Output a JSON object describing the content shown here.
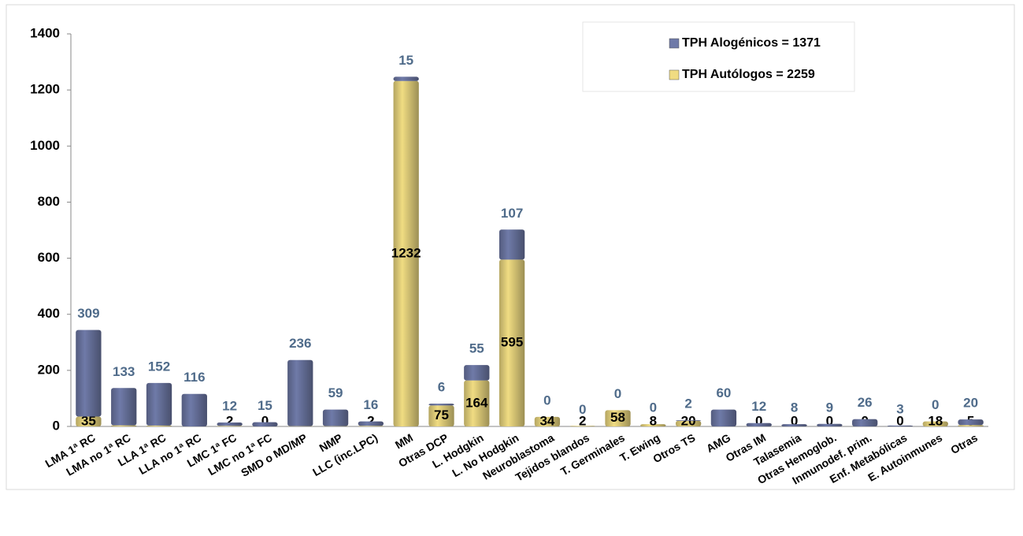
{
  "chart_data": {
    "type": "stacked_bar",
    "categories": [
      "LMA 1ª RC",
      "LMA no 1ª RC",
      "LLA 1ª RC",
      "LLA no 1ª RC",
      "LMC 1ª FC",
      "LMC no 1ª FC",
      "SMD o MD/MP",
      "NMP",
      "LLC (inc.LPC)",
      "MM",
      "Otras DCP",
      "L. Hodgkin",
      "L. No Hodgkin",
      "Neuroblastoma",
      "Tejidos blandos",
      "T. Germinales",
      "T. Ewing",
      "Otros TS",
      "AMG",
      "Otras IM",
      "Talasemia",
      "Otras Hemoglob.",
      "Inmunodef. prim.",
      "Enf. Metabólicas",
      "E. Autoinmunes",
      "Otras"
    ],
    "series": [
      {
        "name": "TPH Autólogos = 2259",
        "color": "#f0dc82",
        "values": [
          35,
          4,
          3,
          0,
          2,
          0,
          1,
          1,
          2,
          1232,
          75,
          164,
          595,
          34,
          2,
          58,
          8,
          20,
          0,
          0,
          0,
          0,
          0,
          0,
          18,
          5
        ]
      },
      {
        "name": "TPH Alogénicos = 1371",
        "color": "#6f7aa8",
        "values": [
          309,
          133,
          152,
          116,
          12,
          15,
          236,
          59,
          16,
          15,
          6,
          55,
          107,
          0,
          0,
          0,
          0,
          2,
          60,
          12,
          8,
          9,
          26,
          3,
          0,
          20
        ]
      }
    ],
    "ylim": [
      0,
      1400
    ],
    "yticks": [
      0,
      200,
      400,
      600,
      800,
      1000,
      1200,
      1400
    ]
  }
}
